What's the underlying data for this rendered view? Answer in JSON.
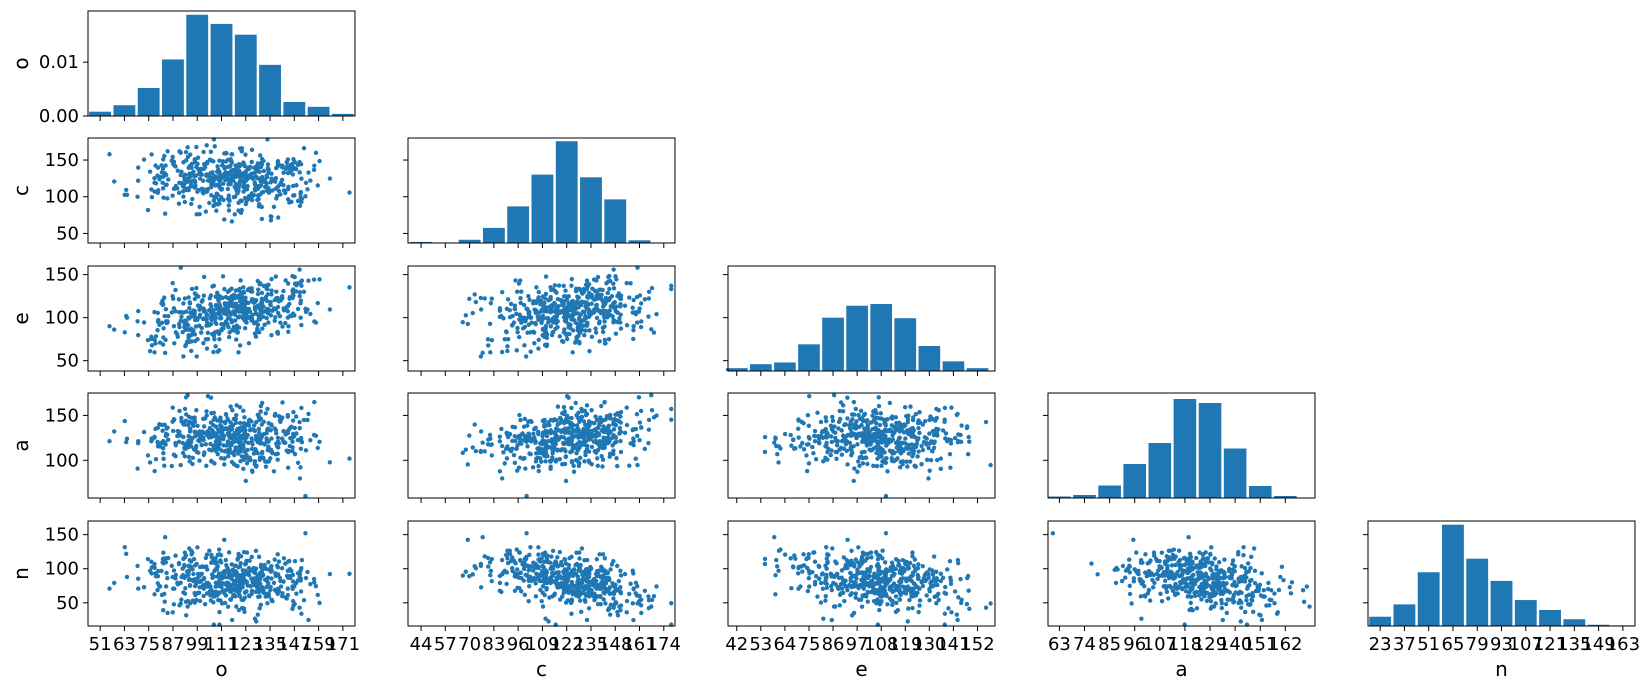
{
  "chart_data": {
    "type": "pairplot",
    "color": "#1f77b4",
    "variables": [
      "o",
      "c",
      "e",
      "a",
      "n"
    ],
    "n_points": 500,
    "x_ticklabels": {
      "o": [
        "51",
        "63",
        "75",
        "87",
        "99",
        "111",
        "123",
        "135",
        "147",
        "159",
        "171"
      ],
      "c": [
        "44",
        "57",
        "70",
        "83",
        "96",
        "109",
        "122",
        "135",
        "148",
        "161",
        "174"
      ],
      "e": [
        "42",
        "53",
        "64",
        "75",
        "86",
        "97",
        "108",
        "119",
        "130",
        "141",
        "152"
      ],
      "a": [
        "63",
        "74",
        "85",
        "96",
        "107",
        "118",
        "129",
        "140",
        "151",
        "162"
      ],
      "n": [
        "23",
        "37",
        "51",
        "65",
        "79",
        "93",
        "107",
        "121",
        "135",
        "149",
        "163"
      ]
    },
    "y_ticks": {
      "o": [
        {
          "value": 0.0,
          "label": "0.00"
        },
        {
          "value": 0.01,
          "label": "0.01"
        }
      ],
      "c": [
        {
          "value": 50,
          "label": "50"
        },
        {
          "value": 100,
          "label": "100"
        },
        {
          "value": 150,
          "label": "150"
        }
      ],
      "e": [
        {
          "value": 50,
          "label": "50"
        },
        {
          "value": 100,
          "label": "100"
        },
        {
          "value": 150,
          "label": "150"
        }
      ],
      "a": [
        {
          "value": 100,
          "label": "100"
        },
        {
          "value": 150,
          "label": "150"
        }
      ],
      "n": [
        {
          "value": 50,
          "label": "50"
        },
        {
          "value": 100,
          "label": "100"
        },
        {
          "value": 150,
          "label": "150"
        }
      ]
    },
    "ranges": {
      "o": [
        45,
        177
      ],
      "c": [
        37,
        180
      ],
      "e": [
        38,
        160
      ],
      "a": [
        58,
        175
      ],
      "n": [
        16,
        170
      ]
    },
    "histograms": {
      "o": {
        "xlim": [
          45,
          177
        ],
        "ylim": [
          0,
          0.0195
        ],
        "edges": [
          51,
          63,
          75,
          87,
          99,
          111,
          123,
          135,
          147,
          159,
          171
        ],
        "heights": [
          0.0008,
          0.002,
          0.0052,
          0.0105,
          0.0188,
          0.0171,
          0.0151,
          0.0095,
          0.0026,
          0.0017,
          0.0004
        ]
      },
      "c": {
        "xlim": [
          37,
          180
        ],
        "ylim": [
          0,
          0.0195
        ],
        "edges": [
          44,
          57,
          70,
          83,
          96,
          109,
          122,
          135,
          148,
          161,
          174
        ],
        "heights": [
          0.0002,
          0.0001,
          0.0006,
          0.0028,
          0.0068,
          0.0127,
          0.0189,
          0.0122,
          0.0081,
          0.0005,
          0.0
        ]
      },
      "e": {
        "xlim": [
          38,
          160
        ],
        "ylim": [
          0,
          0.0185
        ],
        "edges": [
          42,
          53,
          64,
          75,
          86,
          97,
          108,
          119,
          130,
          141,
          152
        ],
        "heights": [
          0.0005,
          0.0012,
          0.0015,
          0.0047,
          0.0094,
          0.0115,
          0.0118,
          0.0093,
          0.0044,
          0.0017,
          0.0005
        ]
      },
      "a": {
        "xlim": [
          58,
          175
        ],
        "ylim": [
          0,
          0.021
        ],
        "edges": [
          63,
          74,
          85,
          96,
          107,
          118,
          129,
          140,
          151,
          162
        ],
        "heights": [
          0.0003,
          0.0006,
          0.0025,
          0.0068,
          0.011,
          0.0198,
          0.019,
          0.0099,
          0.0024,
          0.0004
        ]
      },
      "n": {
        "xlim": [
          16,
          170
        ],
        "ylim": [
          0,
          0.017
        ],
        "edges": [
          23,
          37,
          51,
          65,
          79,
          93,
          107,
          121,
          135,
          149,
          163
        ],
        "heights": [
          0.0015,
          0.0035,
          0.0087,
          0.0164,
          0.0109,
          0.0073,
          0.0042,
          0.0026,
          0.0011,
          0.0002,
          0.0001
        ]
      }
    }
  }
}
